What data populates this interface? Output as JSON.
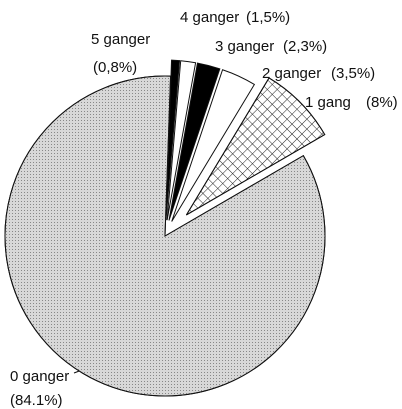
{
  "chart_data": {
    "type": "pie",
    "categories": [
      "0 ganger",
      "1 gang",
      "2 ganger",
      "3 ganger",
      "4 ganger",
      "5 ganger"
    ],
    "values": [
      84.1,
      8,
      3.5,
      2.3,
      1.5,
      0.8
    ],
    "value_labels": [
      "(84.1%)",
      "(8%)",
      "(3,5%)",
      "(2,3%)",
      "(1,5%)",
      "(0,8%)"
    ],
    "colors": [
      "#d8d8d8",
      "#ffffff",
      "#ffffff",
      "#000000",
      "#ffffff",
      "#000000"
    ]
  }
}
